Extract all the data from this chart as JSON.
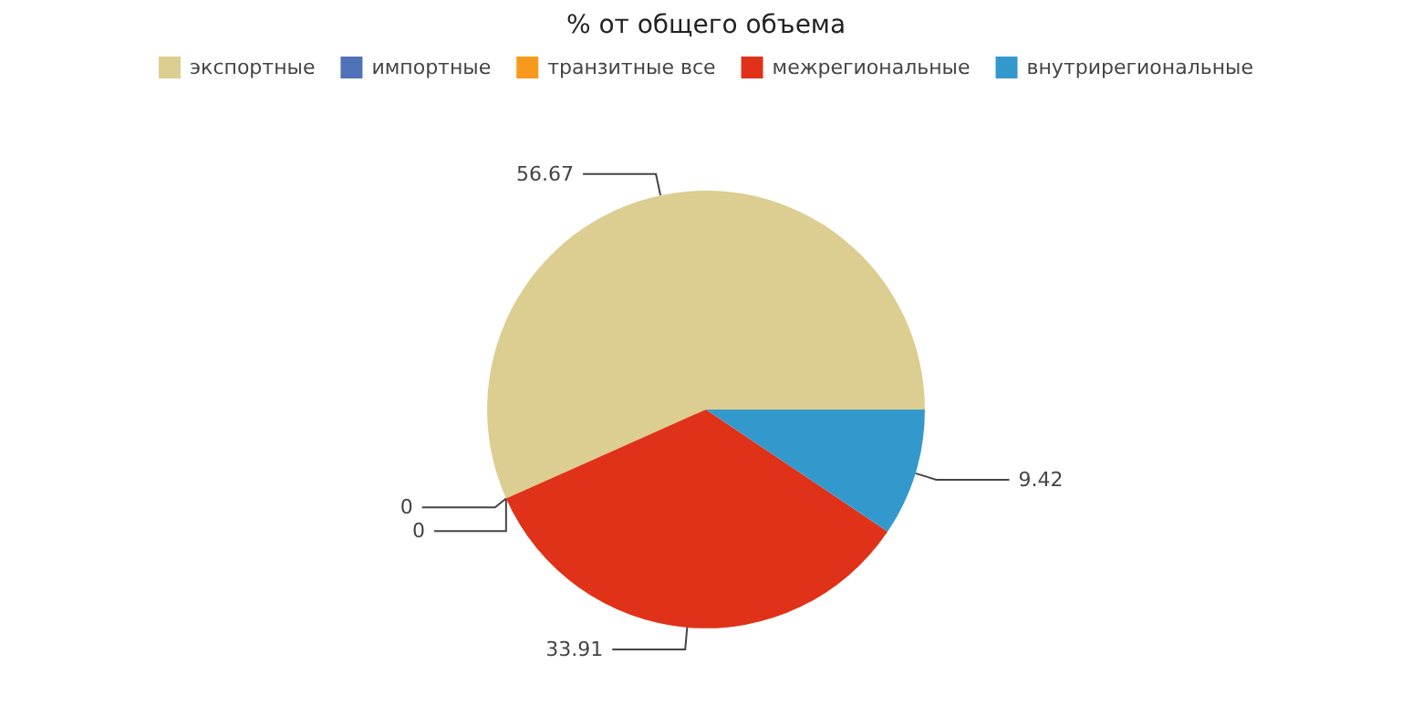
{
  "chart_data": {
    "type": "pie",
    "title": "% от общего объема",
    "categories": [
      "экспортные",
      "импортные",
      "транзитные все",
      "межрегиональные",
      "внутрирегиональные"
    ],
    "values": [
      56.67,
      0,
      0,
      33.91,
      9.42
    ],
    "colors": [
      "#dccd91",
      "#4f72b8",
      "#f79a1b",
      "#e03219",
      "#3399cc"
    ],
    "value_labels": [
      "56.67",
      "0",
      "0",
      "33.91",
      "9.42"
    ],
    "legend": "top"
  }
}
